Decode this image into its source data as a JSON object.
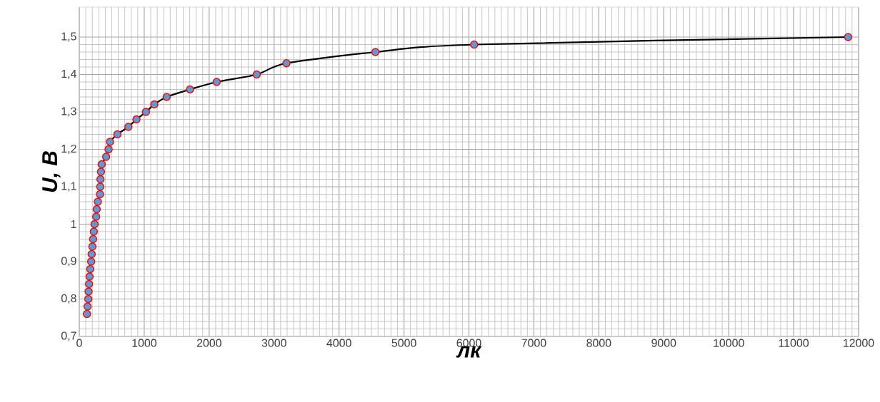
{
  "chart_data": {
    "type": "line",
    "xlabel": "лк",
    "ylabel": "*U*, В",
    "x": [
      118,
      128,
      139,
      143,
      150,
      158,
      169,
      183,
      191,
      202,
      213,
      224,
      235,
      260,
      268,
      286,
      319,
      323,
      326,
      334,
      345,
      414,
      451,
      473,
      587,
      756,
      880,
      1027,
      1155,
      1346,
      1705,
      2116,
      2732,
      3190,
      4560,
      6080,
      11840
    ],
    "series": [
      {
        "color": "#000000",
        "values": [
          0.76,
          0.78,
          0.8,
          0.82,
          0.84,
          0.86,
          0.88,
          0.9,
          0.92,
          0.94,
          0.96,
          0.98,
          1.0,
          1.02,
          1.04,
          1.06,
          1.08,
          1.1,
          1.12,
          1.14,
          1.16,
          1.18,
          1.2,
          1.22,
          1.24,
          1.26,
          1.28,
          1.3,
          1.32,
          1.34,
          1.36,
          1.38,
          1.4,
          1.43,
          1.46,
          1.48,
          1.5
        ]
      }
    ],
    "marker": "circle",
    "grid": true,
    "xlim": [
      0,
      12000
    ],
    "xticks": [
      0,
      1000,
      2000,
      3000,
      4000,
      5000,
      6000,
      7000,
      8000,
      9000,
      10000,
      11000,
      12000
    ],
    "ylim": [
      0.7,
      1.58
    ],
    "yticks": [
      {
        "value": 0.7,
        "label": "0,7"
      },
      {
        "value": 0.8,
        "label": "0,8"
      },
      {
        "value": 0.9,
        "label": "0,9"
      },
      {
        "value": 1,
        "label": "1"
      },
      {
        "value": 1.1,
        "label": "1,1"
      },
      {
        "value": 1.2,
        "label": "1,2"
      },
      {
        "value": 1.3,
        "label": "1,3"
      },
      {
        "value": 1.4,
        "label": "1,4"
      },
      {
        "value": 1.5,
        "label": "1,5"
      }
    ]
  }
}
